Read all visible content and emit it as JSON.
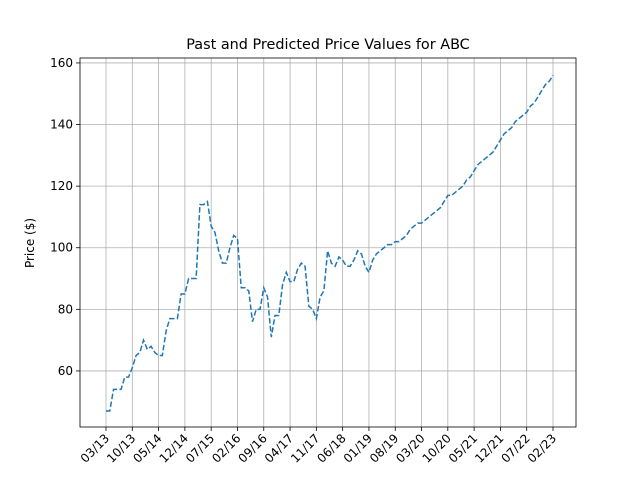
{
  "chart_data": {
    "type": "line",
    "title": "Past and Predicted Price Values for ABC",
    "y_label": "Price ($)",
    "x": [
      "03/13",
      "04/13",
      "05/13",
      "06/13",
      "07/13",
      "08/13",
      "09/13",
      "10/13",
      "11/13",
      "12/13",
      "01/14",
      "02/14",
      "03/14",
      "04/14",
      "05/14",
      "06/14",
      "07/14",
      "08/14",
      "09/14",
      "10/14",
      "11/14",
      "12/14",
      "01/15",
      "02/15",
      "03/15",
      "04/15",
      "05/15",
      "06/15",
      "07/15",
      "08/15",
      "09/15",
      "10/15",
      "11/15",
      "12/15",
      "01/16",
      "02/16",
      "03/16",
      "04/16",
      "05/16",
      "06/16",
      "07/16",
      "08/16",
      "09/16",
      "10/16",
      "11/16",
      "12/16",
      "01/17",
      "02/17",
      "03/17",
      "04/17",
      "05/17",
      "06/17",
      "07/17",
      "08/17",
      "09/17",
      "10/17",
      "11/17",
      "12/17",
      "01/18",
      "02/18",
      "03/18",
      "04/18",
      "05/18",
      "06/18",
      "07/18",
      "08/18",
      "09/18",
      "10/18",
      "11/18",
      "12/18",
      "01/19",
      "02/19",
      "03/19",
      "04/19",
      "05/19",
      "06/19",
      "07/19",
      "08/19",
      "09/19",
      "10/19",
      "11/19",
      "12/19",
      "01/20",
      "02/20",
      "03/20",
      "04/20",
      "05/20",
      "06/20",
      "07/20",
      "08/20",
      "09/20",
      "10/20",
      "11/20",
      "12/20",
      "01/21",
      "02/21",
      "03/21",
      "04/21",
      "05/21",
      "06/21",
      "07/21",
      "08/21",
      "09/21",
      "10/21",
      "11/21",
      "12/21",
      "01/22",
      "02/22",
      "03/22",
      "04/22",
      "05/22",
      "06/22",
      "07/22",
      "08/22",
      "09/22",
      "10/22",
      "11/22",
      "12/22",
      "01/23",
      "02/23"
    ],
    "series": [
      {
        "name": "Price",
        "color": "#1f77b4",
        "values": [
          47,
          47,
          54,
          54,
          54,
          58,
          58,
          61,
          65,
          66,
          70,
          67,
          68,
          66,
          65,
          65,
          73,
          77,
          77,
          77,
          85,
          85,
          90,
          90,
          90,
          114,
          114,
          115,
          107,
          105,
          99,
          95,
          95,
          100,
          104,
          103,
          87,
          87,
          86,
          76,
          80,
          80,
          87,
          84,
          71,
          78,
          78,
          88,
          92,
          89,
          89,
          93,
          95,
          94,
          81,
          80,
          77,
          84,
          86,
          99,
          95,
          94,
          97,
          96,
          94,
          94,
          96,
          99,
          98,
          94,
          92,
          96,
          98,
          99,
          100,
          101,
          101,
          102,
          102,
          103,
          104,
          106,
          107,
          108,
          108,
          109,
          110,
          111,
          112,
          113,
          115,
          117,
          117,
          118,
          119,
          120,
          122,
          123,
          125,
          127,
          128,
          129,
          130,
          131,
          133,
          135,
          137,
          138,
          139,
          141,
          142,
          143,
          144,
          146,
          147,
          149,
          151,
          153,
          154,
          156
        ]
      }
    ],
    "xticks": [
      "03/13",
      "10/13",
      "05/14",
      "12/14",
      "07/15",
      "02/16",
      "09/16",
      "04/17",
      "11/17",
      "06/18",
      "01/19",
      "08/19",
      "03/20",
      "10/20",
      "05/21",
      "12/21",
      "07/22",
      "02/23"
    ],
    "ylim": [
      41.8,
      161.6
    ],
    "yticks": [
      60,
      80,
      100,
      120,
      140,
      160
    ],
    "grid": true,
    "dashed": true
  }
}
